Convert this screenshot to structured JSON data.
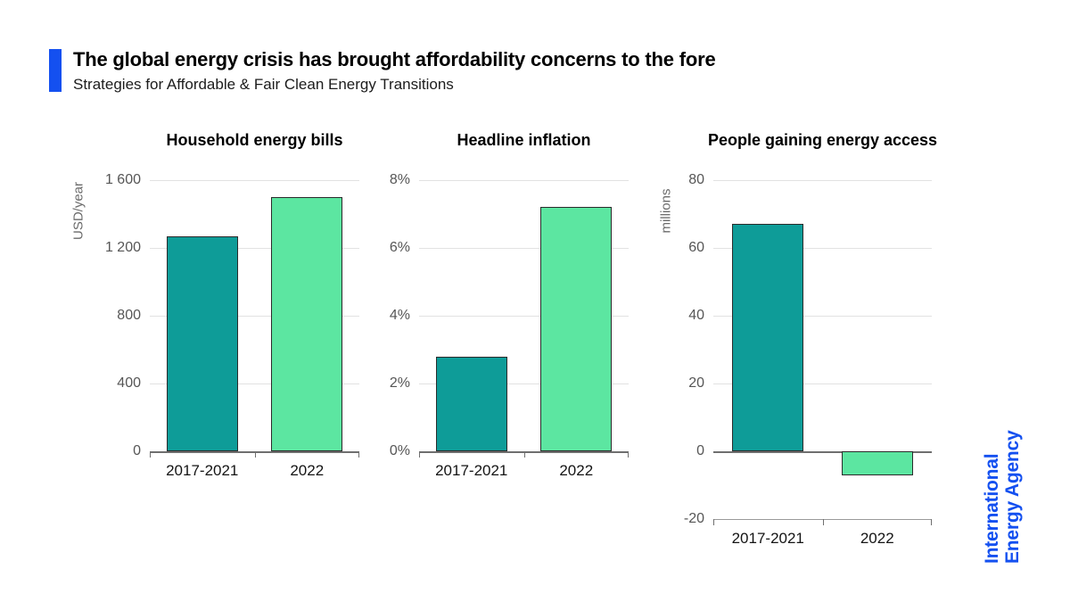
{
  "header": {
    "title": "The global energy crisis has brought affordability concerns to the fore",
    "subtitle": "Strategies for Affordable & Fair Clean Energy Transitions"
  },
  "logo": {
    "line1": "International",
    "line2": "Energy Agency"
  },
  "colors": {
    "accent_blue": "#1450f0",
    "bar_series": [
      "#0e9c98",
      "#5ce6a1"
    ],
    "bar_border": "#2b2b2b",
    "gridline": "#e2e2e2",
    "axis_line": "#6f6f6f"
  },
  "chart_data": [
    {
      "type": "bar",
      "title": "Household energy bills",
      "ylabel": "USD/year",
      "categories": [
        "2017-2021",
        "2022"
      ],
      "values": [
        1270,
        1500
      ],
      "ylim": [
        0,
        1600
      ],
      "ticks": [
        0,
        400,
        800,
        1200,
        1600
      ],
      "tick_labels": [
        "0",
        "400",
        "800",
        "1 200",
        "1 600"
      ],
      "grid": true,
      "legend": "none"
    },
    {
      "type": "bar",
      "title": "Headline inflation",
      "ylabel": "",
      "categories": [
        "2017-2021",
        "2022"
      ],
      "values": [
        2.8,
        7.2
      ],
      "ylim": [
        0,
        8
      ],
      "ticks": [
        0,
        2,
        4,
        6,
        8
      ],
      "tick_labels": [
        "0%",
        "2%",
        "4%",
        "6%",
        "8%"
      ],
      "grid": true,
      "legend": "none"
    },
    {
      "type": "bar",
      "title": "People gaining energy access",
      "ylabel": "millions",
      "categories": [
        "2017-2021",
        "2022"
      ],
      "values": [
        67,
        -7
      ],
      "ylim": [
        -20,
        80
      ],
      "ticks": [
        -20,
        0,
        20,
        40,
        60,
        80
      ],
      "tick_labels": [
        "-20",
        "0",
        "20",
        "40",
        "60",
        "80"
      ],
      "grid": true,
      "legend": "none"
    }
  ]
}
